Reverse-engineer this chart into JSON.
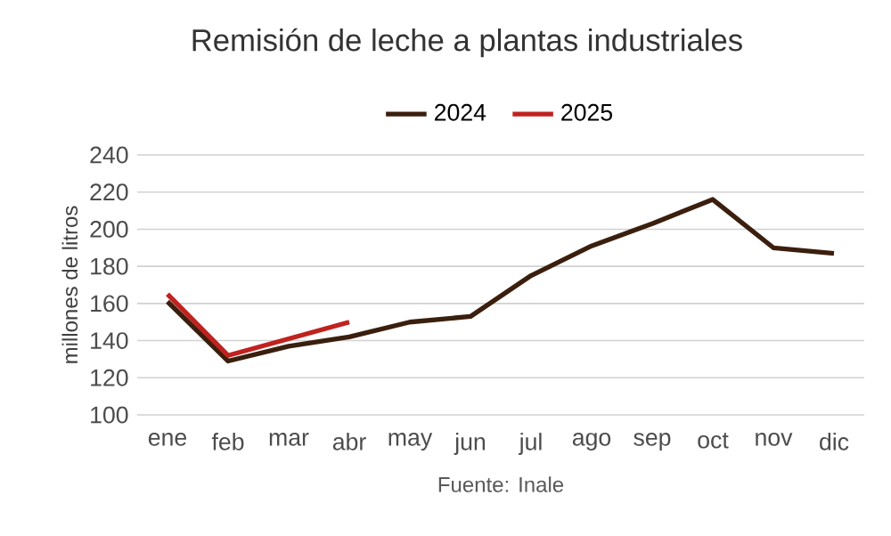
{
  "chart_data": {
    "type": "line",
    "title": "Remisión de leche a plantas industriales",
    "ylabel": "millones de litros",
    "categories": [
      "ene",
      "feb",
      "mar",
      "abr",
      "may",
      "jun",
      "jul",
      "ago",
      "sep",
      "oct",
      "nov",
      "dic"
    ],
    "series": [
      {
        "name": "2024",
        "color": "#3b1f0e",
        "values": [
          161,
          129,
          137,
          142,
          150,
          153,
          175,
          191,
          203,
          216,
          190,
          187
        ]
      },
      {
        "name": "2025",
        "color": "#c0221f",
        "values": [
          165,
          132,
          141,
          150,
          null,
          null,
          null,
          null,
          null,
          null,
          null,
          null
        ]
      }
    ],
    "ylim": [
      100,
      240
    ],
    "yticks": [
      100,
      120,
      140,
      160,
      180,
      200,
      220,
      240
    ],
    "grid": "y",
    "legend": "top",
    "annotations": [
      "Fuente: Inale"
    ]
  }
}
